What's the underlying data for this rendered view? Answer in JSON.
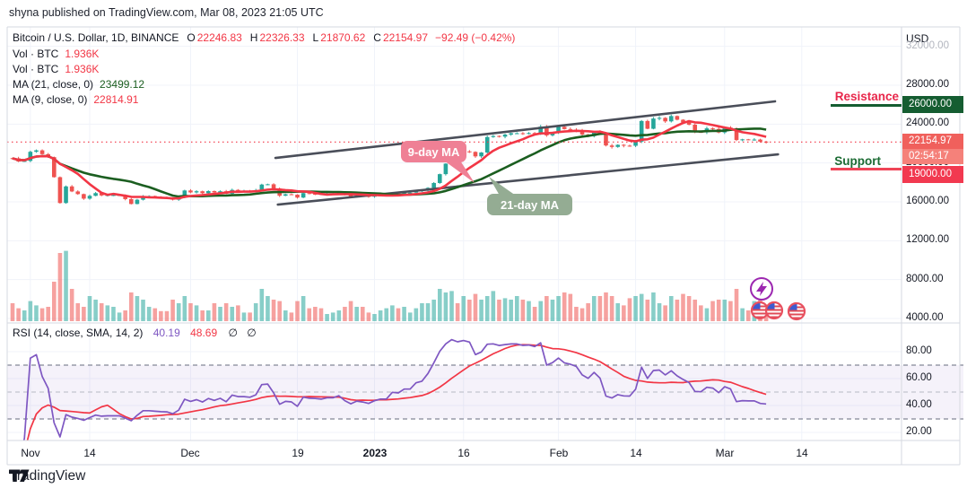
{
  "header": {
    "attribution": "shyna published on TradingView.com, Mar 08, 2023 21:05 UTC"
  },
  "watermark": {
    "brand": "TradingView"
  },
  "legend": {
    "symbol_row": {
      "title": "Bitcoin / U.S. Dollar, 1D, BINANCE",
      "o_label": "O",
      "o": "22246.83",
      "h_label": "H",
      "h": "22326.33",
      "l_label": "L",
      "l": "21870.62",
      "c_label": "C",
      "c": "22154.97",
      "change": "−92.49 (−0.42%)"
    },
    "vol_rows": [
      {
        "label": "Vol · BTC",
        "value": "1.936K"
      },
      {
        "label": "Vol · BTC",
        "value": "1.936K"
      }
    ],
    "ma_rows": [
      {
        "label": "MA (21, close, 0)",
        "value": "23499.12",
        "color": "#1b5e20"
      },
      {
        "label": "MA (9, close, 0)",
        "value": "22814.91",
        "color": "#f23645"
      }
    ]
  },
  "rsi_legend": {
    "label": "RSI (14, close, SMA, 14, 2)",
    "value1": "40.19",
    "value2": "48.69",
    "empty1": "∅",
    "empty2": "∅"
  },
  "price_axis": {
    "currency": "USD",
    "ticks": [
      {
        "label": "32000.00",
        "value": 32000,
        "faded": true
      },
      {
        "label": "28000.00",
        "value": 28000
      },
      {
        "label": "24000.00",
        "value": 24000
      },
      {
        "label": "20000.00",
        "value": 20000
      },
      {
        "label": "16000.00",
        "value": 16000
      },
      {
        "label": "12000.00",
        "value": 12000
      },
      {
        "label": "8000.00",
        "value": 8000
      },
      {
        "label": "4000.00",
        "value": 4000
      }
    ]
  },
  "rsi_axis": {
    "ticks": [
      {
        "label": "80.00",
        "value": 80
      },
      {
        "label": "60.00",
        "value": 60
      },
      {
        "label": "40.00",
        "value": 40
      },
      {
        "label": "20.00",
        "value": 20
      }
    ]
  },
  "time_axis": {
    "labels": [
      {
        "text": "Nov",
        "day": 3
      },
      {
        "text": "14",
        "day": 13
      },
      {
        "text": "Dec",
        "day": 30
      },
      {
        "text": "19",
        "day": 48
      },
      {
        "text": "2023",
        "day": 61,
        "bold": true
      },
      {
        "text": "16",
        "day": 76
      },
      {
        "text": "Feb",
        "day": 92
      },
      {
        "text": "14",
        "day": 105
      },
      {
        "text": "Mar",
        "day": 120
      },
      {
        "text": "14",
        "day": 133
      }
    ]
  },
  "annotations": {
    "resistance": {
      "label": "Resistance",
      "price_label": "26000.00",
      "price": 26000
    },
    "support": {
      "label": "Support",
      "price_label": "19000.00",
      "price": 19000
    },
    "last_price": {
      "label": "22154.97",
      "countdown": "02:54:17",
      "price": 22154.97
    },
    "ma9_callout": "9-day MA",
    "ma21_callout": "21-day MA"
  },
  "colors": {
    "up": "#26a69a",
    "down": "#ef5350",
    "ma9": "#f23645",
    "ma21": "#1b5e20",
    "rsi": "#7e57c2",
    "rsi_ma": "#f23645",
    "grid": "#f0f3fa",
    "frame": "#d6d9e0",
    "band_dash": "#838896",
    "band_mid_dash": "#b7bac4",
    "channel": "#4a4e59",
    "resistance_text": "#e8274b",
    "resistance_badge": "#155d31",
    "support_text": "#1b6b33",
    "support_badge": "#f23950",
    "last_price_badge": "#f0605c",
    "countdown_badge": "#f5817a",
    "callout_ma9": "#ef8095",
    "callout_ma21": "#94ac93",
    "event_icon_ring": "#e8505f",
    "idea_icon": "#9c27b0"
  },
  "chart_data": {
    "type": "candlestick",
    "title": "Bitcoin / U.S. Dollar",
    "interval": "1D",
    "exchange": "BINANCE",
    "start_date": "2022-11-01",
    "end_date": "2023-03-08",
    "price_axis_range": [
      2500,
      33500
    ],
    "rsi_axis_range": [
      13,
      97
    ],
    "first_open": 20500,
    "close": [
      20480,
      20150,
      20210,
      21150,
      21300,
      20910,
      20600,
      18540,
      15880,
      17590,
      17070,
      16800,
      16330,
      16620,
      16900,
      16660,
      16700,
      16700,
      16700,
      16280,
      15780,
      16220,
      16600,
      16600,
      16520,
      16460,
      16440,
      16220,
      16440,
      17170,
      16970,
      17090,
      16890,
      17110,
      16970,
      17090,
      16840,
      17230,
      17130,
      17130,
      17090,
      17210,
      17780,
      17810,
      17360,
      16630,
      16780,
      16740,
      16440,
      16900,
      16830,
      16820,
      16780,
      16840,
      16840,
      16920,
      16700,
      16550,
      16640,
      16600,
      16540,
      16620,
      16670,
      16670,
      16860,
      16840,
      16950,
      16950,
      17130,
      17180,
      17440,
      17940,
      18850,
      19930,
      20960,
      20880,
      21190,
      21140,
      20680,
      21080,
      22670,
      22780,
      22710,
      22920,
      23060,
      23060,
      23010,
      23080,
      23030,
      23740,
      22840,
      23130,
      23720,
      23490,
      23430,
      23330,
      22930,
      22760,
      23250,
      22960,
      21800,
      21650,
      21870,
      21780,
      21770,
      22200,
      24320,
      23520,
      24570,
      24640,
      24280,
      24830,
      24450,
      24180,
      23940,
      23190,
      23160,
      23560,
      23500,
      23140,
      23640,
      23470,
      22360,
      22430,
      22410,
      22410,
      22200,
      22155
    ],
    "volume_rel": [
      25,
      18,
      15,
      28,
      22,
      18,
      20,
      55,
      95,
      98,
      45,
      25,
      20,
      35,
      30,
      25,
      22,
      20,
      12,
      15,
      40,
      35,
      30,
      20,
      18,
      14,
      14,
      30,
      25,
      35,
      25,
      22,
      15,
      15,
      25,
      20,
      25,
      20,
      22,
      12,
      12,
      25,
      45,
      35,
      30,
      28,
      15,
      12,
      28,
      35,
      18,
      20,
      18,
      10,
      12,
      15,
      20,
      28,
      20,
      20,
      12,
      10,
      15,
      18,
      22,
      18,
      20,
      12,
      18,
      25,
      25,
      30,
      45,
      40,
      42,
      25,
      35,
      30,
      38,
      30,
      35,
      42,
      30,
      32,
      30,
      35,
      30,
      28,
      20,
      28,
      35,
      30,
      35,
      40,
      38,
      20,
      18,
      25,
      35,
      35,
      40,
      35,
      25,
      22,
      32,
      35,
      38,
      30,
      40,
      25,
      22,
      35,
      30,
      38,
      35,
      30,
      22,
      18,
      28,
      30,
      30,
      28,
      45,
      18,
      15,
      28,
      35,
      20
    ],
    "indicators": {
      "ma_fast": 9,
      "ma_slow": 21,
      "rsi_period": 14,
      "rsi_sma": 14,
      "rsi_band": [
        30,
        70
      ],
      "rsi_mid": 50
    },
    "trend_channel": {
      "upper": {
        "day1": 44.3,
        "price1": 20520,
        "day2": 128.5,
        "price2": 26340
      },
      "lower": {
        "day1": 44.7,
        "price1": 15720,
        "day2": 129.0,
        "price2": 20890
      }
    },
    "last_price_line": 22154.97
  }
}
